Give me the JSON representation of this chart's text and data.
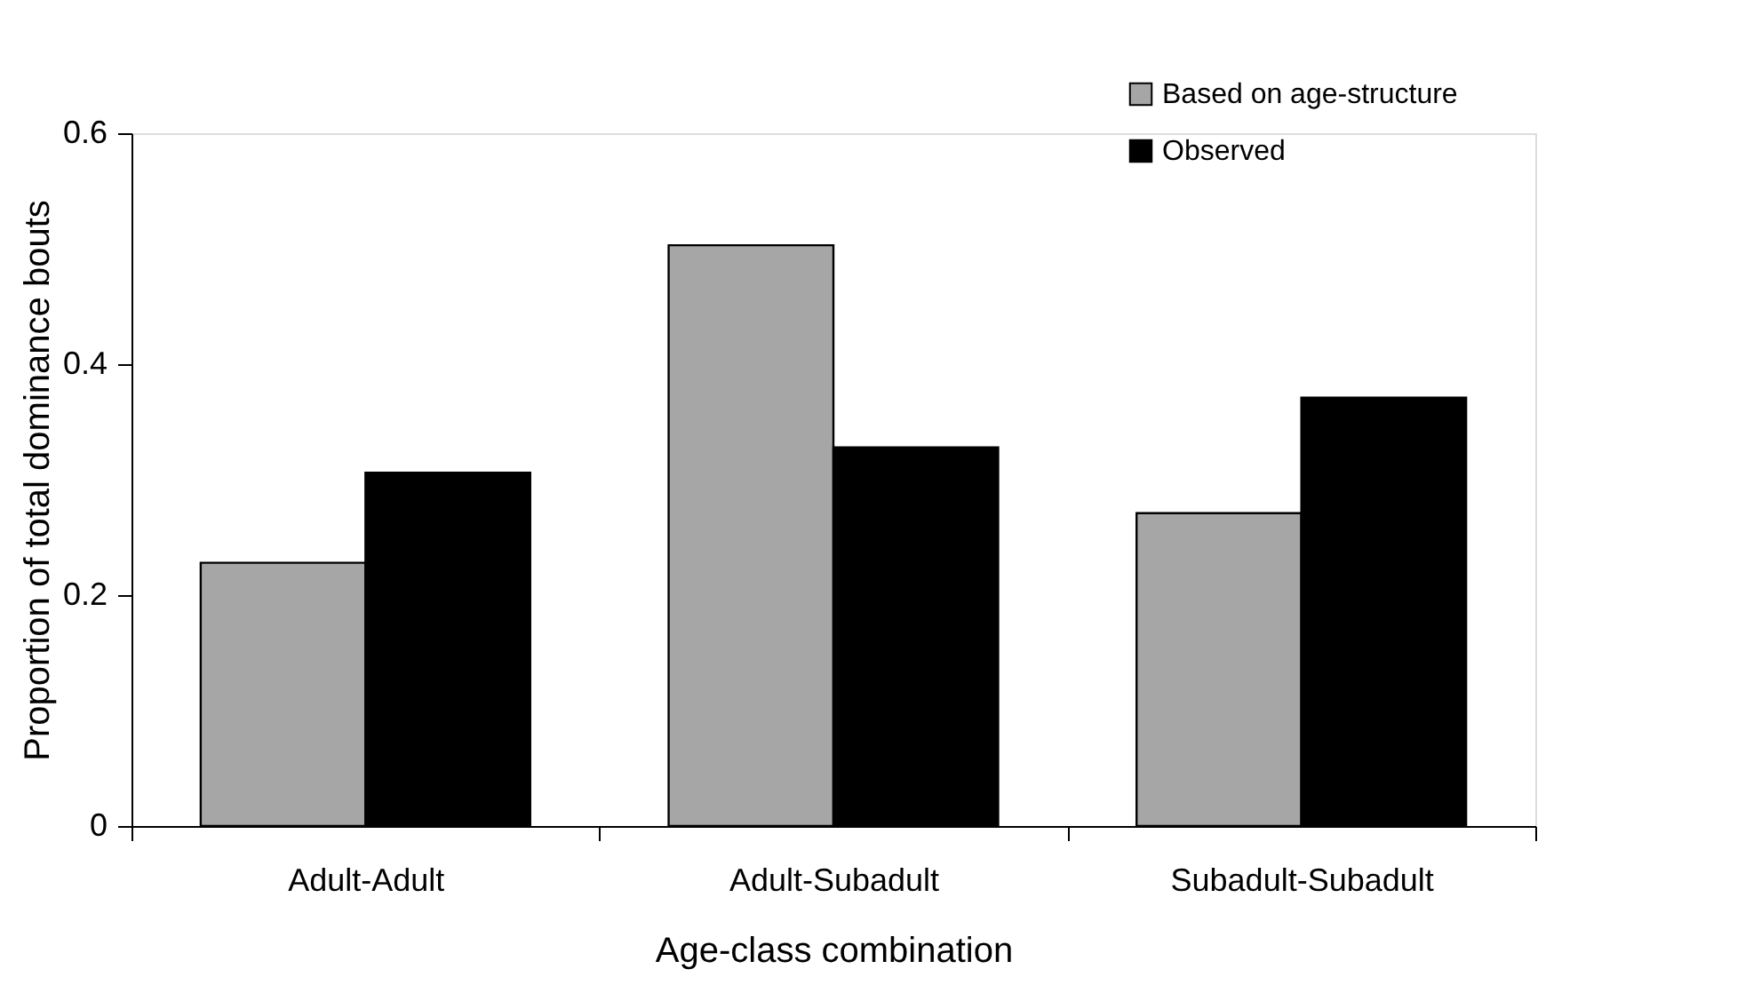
{
  "chart_data": {
    "type": "bar",
    "xlabel": "Age-class combination",
    "ylabel": "Proportion of total dominance bouts",
    "categories": [
      "Adult-Adult",
      "Adult-Subadult",
      "Subadult-Subadult"
    ],
    "series": [
      {
        "name": "Based on age-structure",
        "color": "#a6a6a6",
        "values": [
          0.228,
          0.503,
          0.271
        ]
      },
      {
        "name": "Observed",
        "color": "#000000",
        "values": [
          0.306,
          0.328,
          0.371
        ]
      }
    ],
    "ylim": [
      0,
      0.6
    ],
    "yticks": [
      0,
      {
        "value": 0.2,
        "label": "0.2"
      },
      {
        "value": 0.4,
        "label": "0.4"
      },
      {
        "value": 0.6,
        "label": "0.6"
      }
    ],
    "grid": false,
    "legend": "top right"
  }
}
